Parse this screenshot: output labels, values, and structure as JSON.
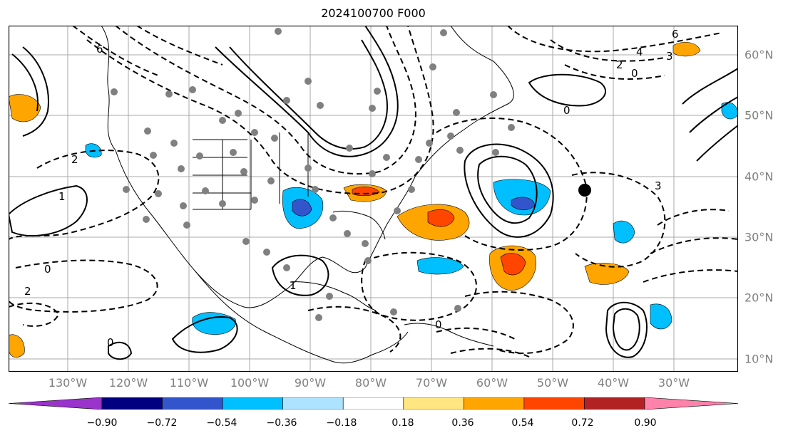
{
  "title": "2024100700 F000",
  "lon_labels": [
    "130°W",
    "120°W",
    "110°W",
    "100°W",
    "90°W",
    "80°W",
    "70°W",
    "60°W",
    "50°W",
    "40°W",
    "30°W"
  ],
  "lat_labels": [
    "60°N",
    "50°N",
    "40°N",
    "30°N",
    "20°N",
    "10°N"
  ],
  "colorbar": {
    "colors": [
      "#9933cc",
      "#000080",
      "#3355cc",
      "#00bfff",
      "#aee3ff",
      "#ffffff",
      "#ffe680",
      "#ffa500",
      "#ff4500",
      "#b22222",
      "#ff82ab"
    ],
    "ticks": [
      "−0.90",
      "−0.72",
      "−0.54",
      "−0.36",
      "−0.18",
      "0.18",
      "0.36",
      "0.54",
      "0.72",
      "0.90"
    ]
  }
}
